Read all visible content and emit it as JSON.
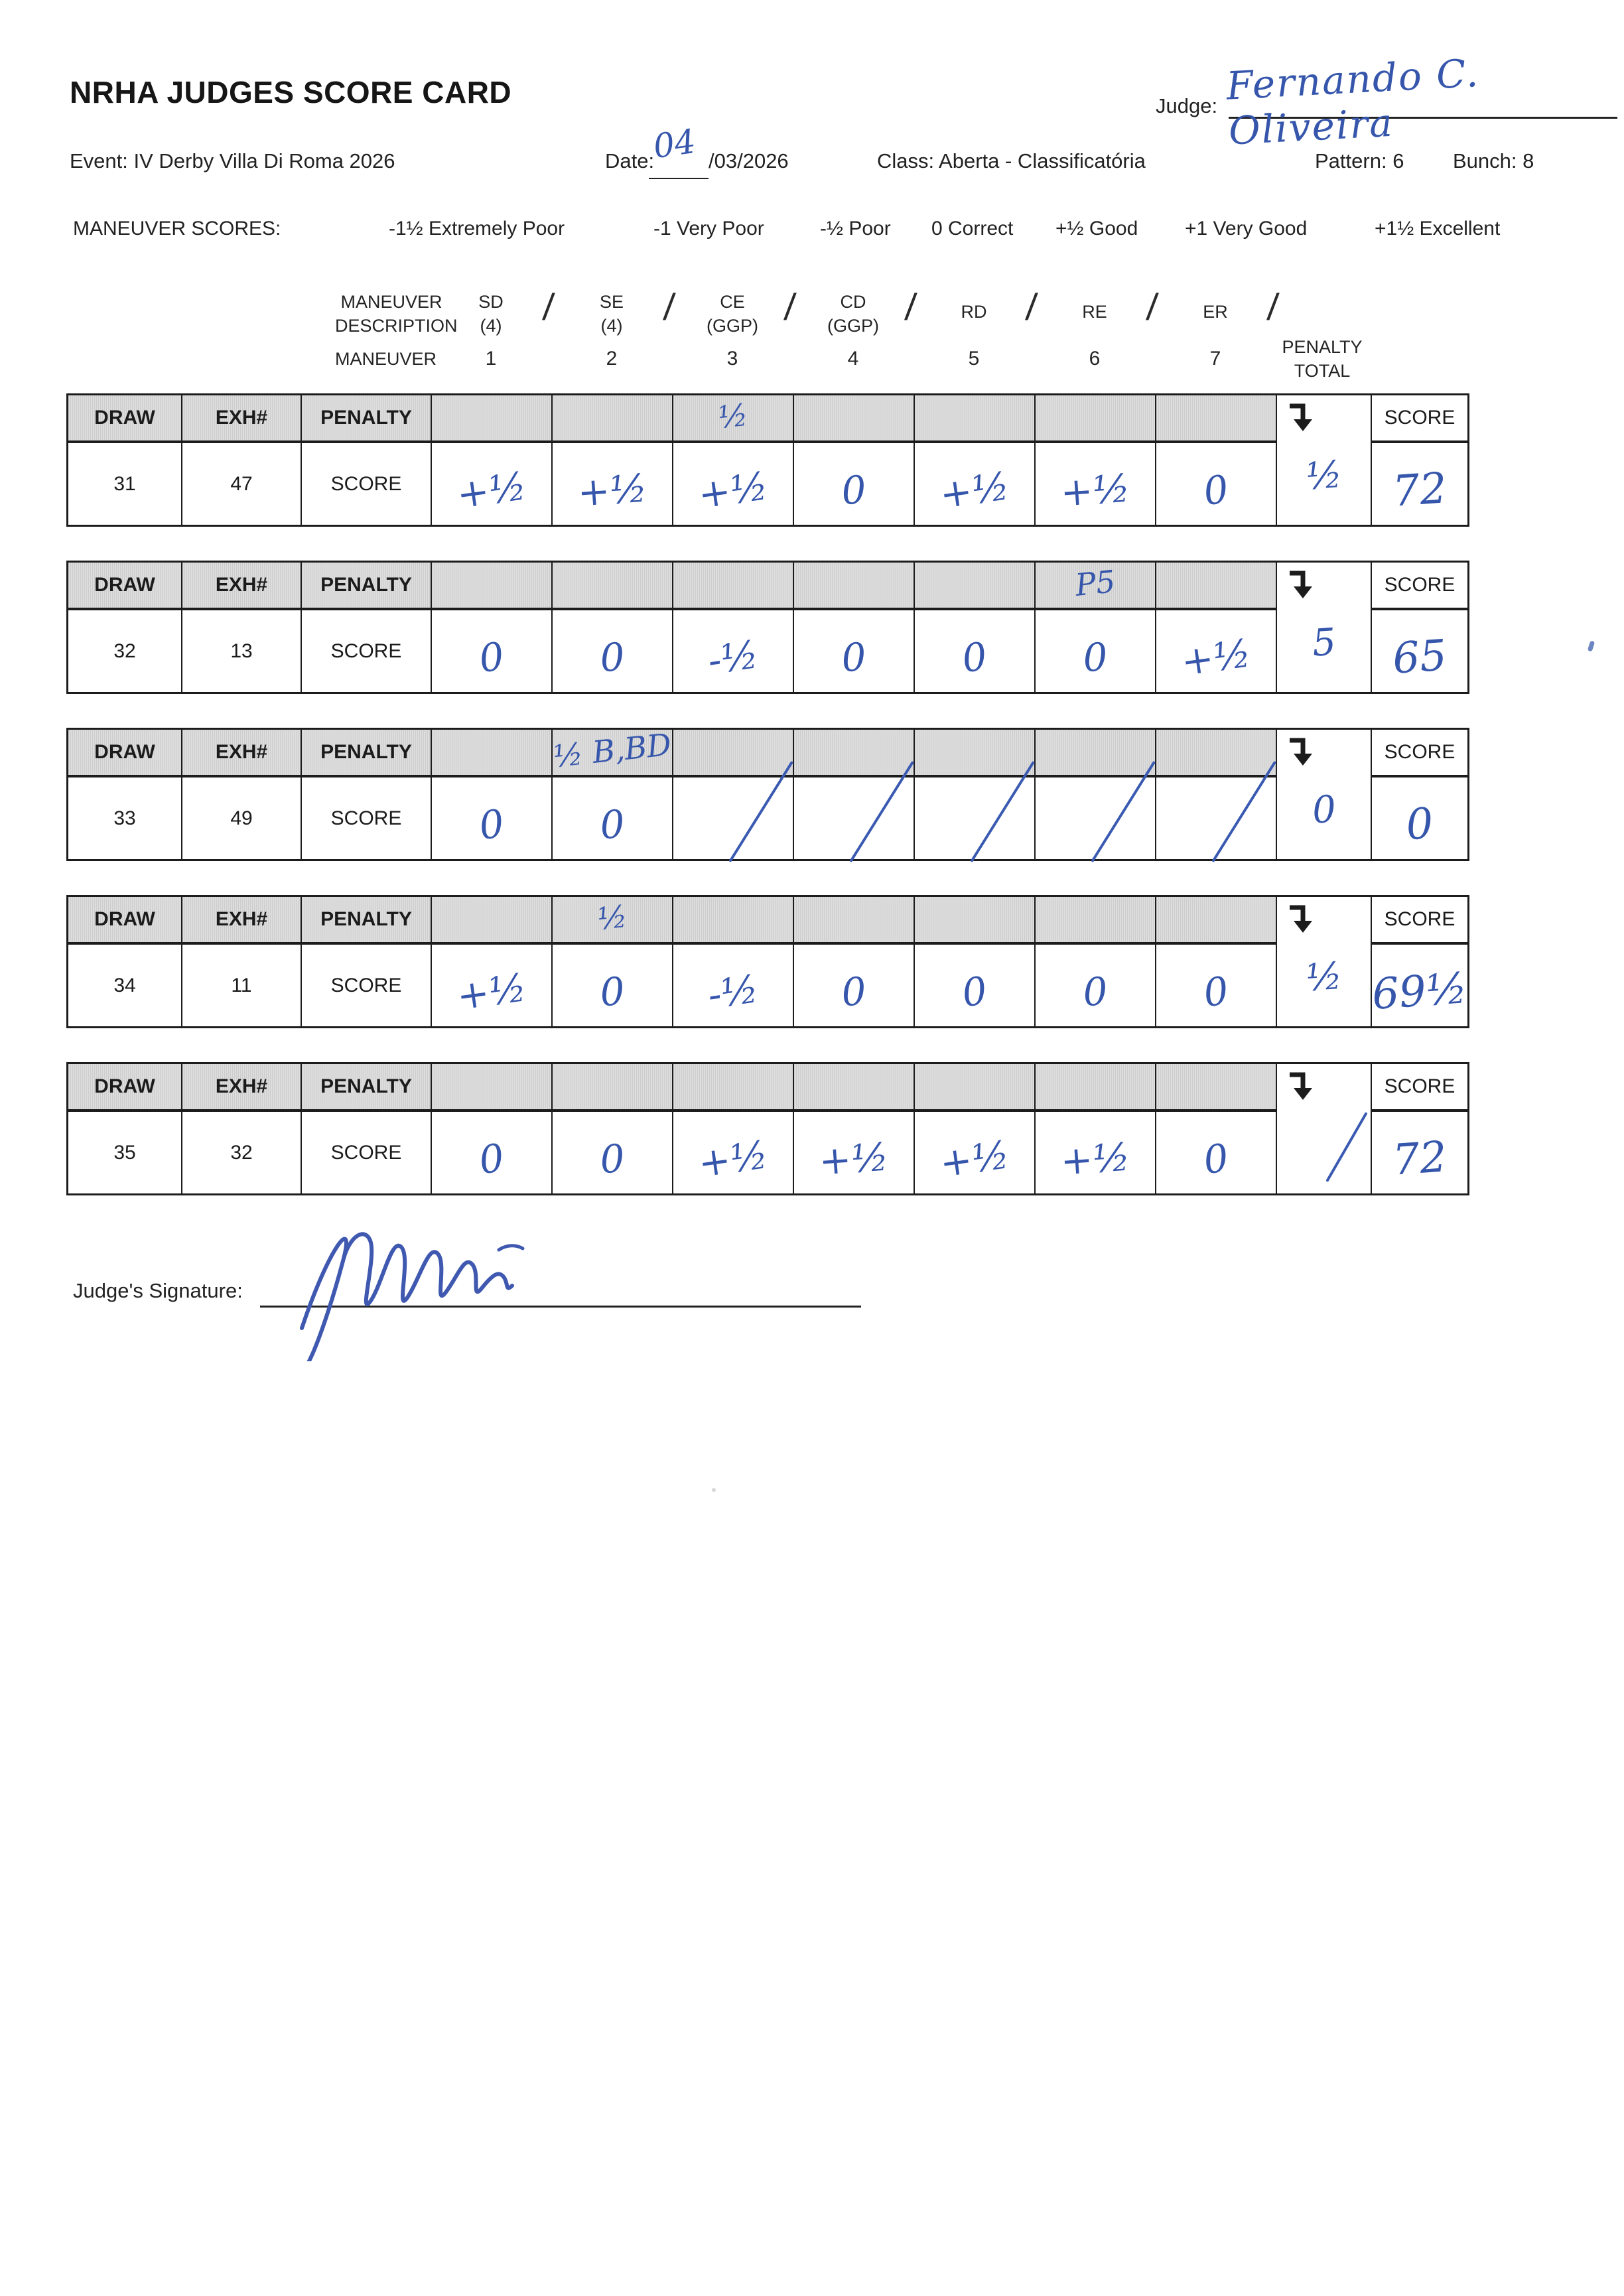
{
  "header": {
    "title": "NRHA JUDGES SCORE CARD",
    "judge_label": "Judge:",
    "judge_name": "Fernando C. Oliveira",
    "event_label": "Event:",
    "event_value": "IV Derby Villa Di Roma 2026",
    "date_label": "Date:",
    "date_handwritten": "04",
    "date_printed": "/03/2026",
    "class_label": "Class:",
    "class_value": "Aberta - Classificatória",
    "pattern_label": "Pattern:",
    "pattern_value": "6",
    "bunch_label": "Bunch:",
    "bunch_value": "8"
  },
  "legend": {
    "label": "MANEUVER SCORES:",
    "items": [
      "-1½ Extremely Poor",
      "-1 Very Poor",
      "-½ Poor",
      "0 Correct",
      "+½ Good",
      "+1 Very Good",
      "+1½ Excellent"
    ]
  },
  "maneuver_header": {
    "description_line1": "MANEUVER",
    "description_line2": "DESCRIPTION",
    "maneuver_label": "MANEUVER",
    "separator": "/",
    "penalty_total_line1": "PENALTY",
    "penalty_total_line2": "TOTAL",
    "columns": [
      {
        "code": "SD",
        "sub": "(4)",
        "number": "1"
      },
      {
        "code": "SE",
        "sub": "(4)",
        "number": "2"
      },
      {
        "code": "CE",
        "sub": "(GGP)",
        "number": "3"
      },
      {
        "code": "CD",
        "sub": "(GGP)",
        "number": "4"
      },
      {
        "code": "RD",
        "sub": "",
        "number": "5"
      },
      {
        "code": "RE",
        "sub": "",
        "number": "6"
      },
      {
        "code": "ER",
        "sub": "",
        "number": "7"
      }
    ]
  },
  "table_labels": {
    "draw": "DRAW",
    "exh": "EXH#",
    "penalty": "PENALTY",
    "score_row": "SCORE",
    "score_col": "SCORE"
  },
  "cards": [
    {
      "draw": "31",
      "exh": "47",
      "penalties": [
        "",
        "",
        "½",
        "",
        "",
        "",
        ""
      ],
      "scores": [
        "+½",
        "+½",
        "+½",
        "0",
        "+½",
        "+½",
        "0"
      ],
      "penalty_total": "½",
      "score": "72"
    },
    {
      "draw": "32",
      "exh": "13",
      "penalties": [
        "",
        "",
        "",
        "",
        "",
        "P5",
        ""
      ],
      "scores": [
        "0",
        "0",
        "-½",
        "0",
        "0",
        "0",
        "+½"
      ],
      "penalty_total": "5",
      "score": "65"
    },
    {
      "draw": "33",
      "exh": "49",
      "penalties": [
        "",
        "½ B,BD",
        "",
        "",
        "",
        "",
        ""
      ],
      "scores": [
        "0",
        "0",
        "/",
        "/",
        "/",
        "/",
        "/"
      ],
      "penalty_total": "0",
      "score": "0"
    },
    {
      "draw": "34",
      "exh": "11",
      "penalties": [
        "",
        "½",
        "",
        "",
        "",
        "",
        ""
      ],
      "scores": [
        "+½",
        "0",
        "-½",
        "0",
        "0",
        "0",
        "0"
      ],
      "penalty_total": "½",
      "score": "69½"
    },
    {
      "draw": "35",
      "exh": "32",
      "penalties": [
        "",
        "",
        "",
        "",
        "",
        "",
        ""
      ],
      "scores": [
        "0",
        "0",
        "+½",
        "+½",
        "+½",
        "+½",
        "0"
      ],
      "penalty_total": "/",
      "score": "72"
    }
  ],
  "footer": {
    "signature_label": "Judge's Signature:"
  }
}
